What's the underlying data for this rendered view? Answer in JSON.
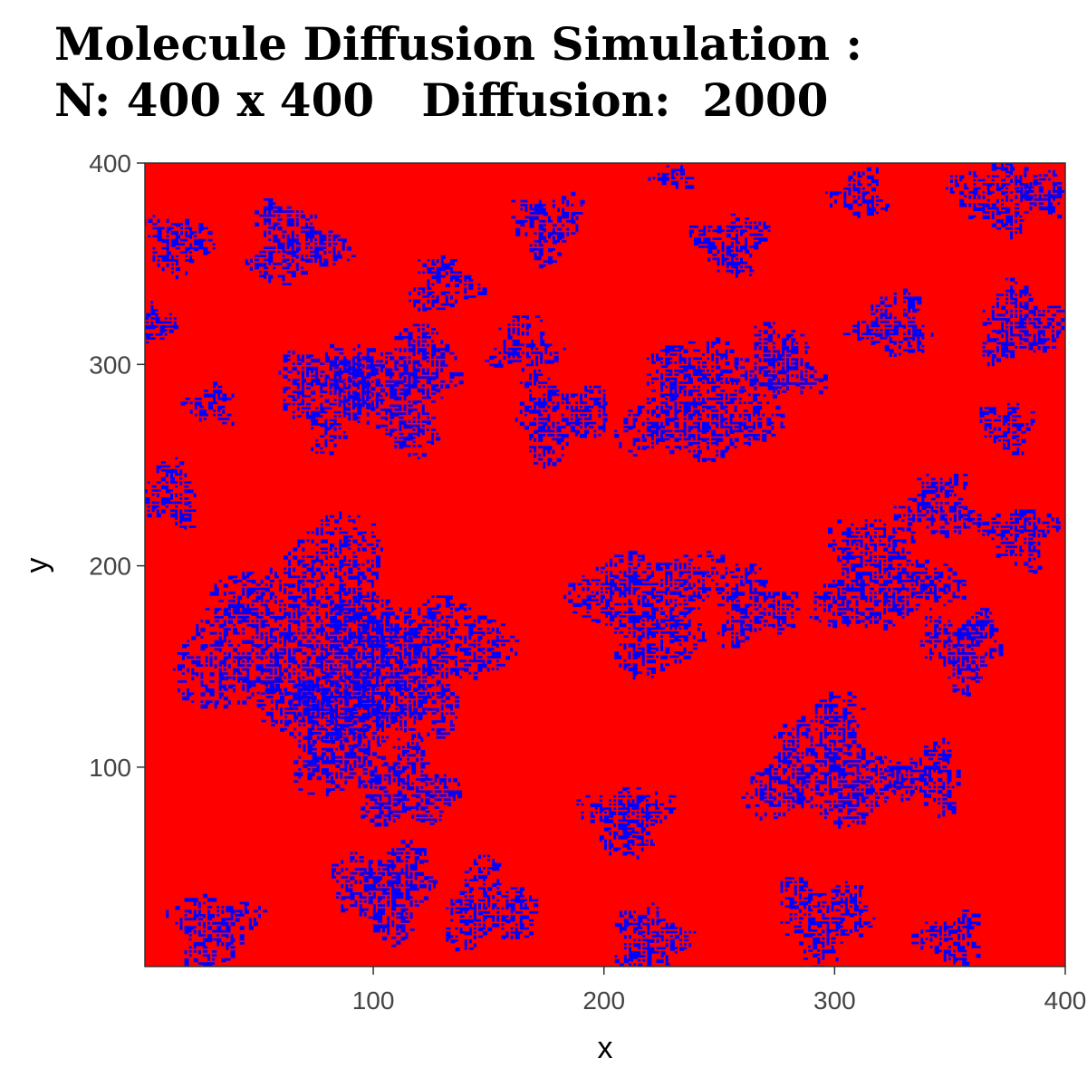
{
  "chart_data": {
    "type": "heatmap",
    "title": "Molecule Diffusion Simulation :",
    "subtitle": "N: 400 x 400   Diffusion:  2000",
    "xlabel": "x",
    "ylabel": "y",
    "xlim": [
      1,
      400
    ],
    "ylim": [
      1,
      400
    ],
    "x_ticks": [
      100,
      200,
      300,
      400
    ],
    "y_ticks": [
      100,
      200,
      300,
      400
    ],
    "background_color": "#ff0000",
    "cluster_color": "#0000ff",
    "grid": false,
    "legend": "none",
    "clusters": [
      {
        "x": 70,
        "y": 165,
        "r": 48
      },
      {
        "x": 120,
        "y": 155,
        "r": 34
      },
      {
        "x": 85,
        "y": 120,
        "r": 30
      },
      {
        "x": 110,
        "y": 290,
        "r": 28
      },
      {
        "x": 80,
        "y": 285,
        "r": 22
      },
      {
        "x": 65,
        "y": 360,
        "r": 20
      },
      {
        "x": 15,
        "y": 360,
        "r": 14
      },
      {
        "x": 10,
        "y": 235,
        "r": 15
      },
      {
        "x": 5,
        "y": 320,
        "r": 10
      },
      {
        "x": 30,
        "y": 280,
        "r": 10
      },
      {
        "x": 130,
        "y": 340,
        "r": 14
      },
      {
        "x": 175,
        "y": 370,
        "r": 16
      },
      {
        "x": 165,
        "y": 310,
        "r": 14
      },
      {
        "x": 180,
        "y": 275,
        "r": 20
      },
      {
        "x": 240,
        "y": 280,
        "r": 30
      },
      {
        "x": 275,
        "y": 300,
        "r": 18
      },
      {
        "x": 255,
        "y": 360,
        "r": 15
      },
      {
        "x": 220,
        "y": 180,
        "r": 30
      },
      {
        "x": 265,
        "y": 180,
        "r": 18
      },
      {
        "x": 320,
        "y": 195,
        "r": 28
      },
      {
        "x": 355,
        "y": 160,
        "r": 18
      },
      {
        "x": 325,
        "y": 320,
        "r": 16
      },
      {
        "x": 380,
        "y": 320,
        "r": 18
      },
      {
        "x": 375,
        "y": 270,
        "r": 12
      },
      {
        "x": 380,
        "y": 215,
        "r": 15
      },
      {
        "x": 345,
        "y": 230,
        "r": 16
      },
      {
        "x": 370,
        "y": 385,
        "r": 18
      },
      {
        "x": 310,
        "y": 385,
        "r": 12
      },
      {
        "x": 295,
        "y": 100,
        "r": 30
      },
      {
        "x": 340,
        "y": 95,
        "r": 16
      },
      {
        "x": 210,
        "y": 75,
        "r": 18
      },
      {
        "x": 115,
        "y": 90,
        "r": 20
      },
      {
        "x": 105,
        "y": 40,
        "r": 22
      },
      {
        "x": 150,
        "y": 30,
        "r": 20
      },
      {
        "x": 30,
        "y": 20,
        "r": 18
      },
      {
        "x": 220,
        "y": 15,
        "r": 16
      },
      {
        "x": 295,
        "y": 25,
        "r": 20
      },
      {
        "x": 350,
        "y": 15,
        "r": 14
      },
      {
        "x": 390,
        "y": 385,
        "r": 10
      },
      {
        "x": 230,
        "y": 395,
        "r": 8
      }
    ]
  }
}
